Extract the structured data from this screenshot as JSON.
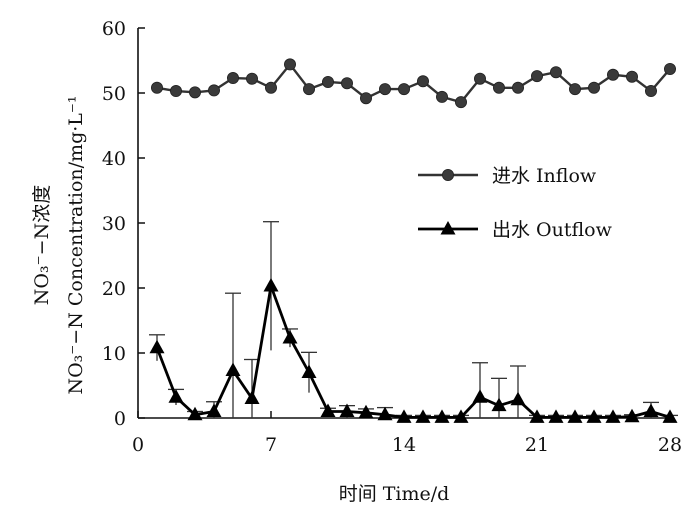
{
  "chart_data": {
    "type": "line",
    "xlabel": "时间 Time/d",
    "ylabel_cn": "NO₃⁻−N浓度",
    "ylabel_en": "NO₃⁻−N Concentration/mg·L⁻¹",
    "xlim": [
      0,
      28
    ],
    "ylim": [
      0,
      60
    ],
    "xticks": [
      0,
      7,
      14,
      21,
      28
    ],
    "yticks": [
      0,
      10,
      20,
      30,
      40,
      50,
      60
    ],
    "legend_position": "center-right",
    "grid": false,
    "series": [
      {
        "name": "进水 Inflow",
        "marker": "circle",
        "x": [
          1,
          2,
          3,
          4,
          5,
          6,
          7,
          8,
          9,
          10,
          11,
          12,
          13,
          14,
          15,
          16,
          17,
          18,
          19,
          20,
          21,
          22,
          23,
          24,
          25,
          26,
          27,
          28
        ],
        "y": [
          50.8,
          50.3,
          50.1,
          50.4,
          52.3,
          52.2,
          50.8,
          54.4,
          50.6,
          51.7,
          51.5,
          49.2,
          50.6,
          50.6,
          51.8,
          49.4,
          48.6,
          52.2,
          50.8,
          50.8,
          52.6,
          53.2,
          50.6,
          50.8,
          52.8,
          52.5,
          50.3,
          53.7
        ]
      },
      {
        "name": "出水 Outflow",
        "marker": "triangle",
        "x": [
          1,
          2,
          3,
          4,
          5,
          6,
          7,
          8,
          9,
          10,
          11,
          12,
          13,
          14,
          15,
          16,
          17,
          18,
          19,
          20,
          21,
          22,
          23,
          24,
          25,
          26,
          27,
          28
        ],
        "y": [
          10.8,
          3.2,
          0.5,
          1.0,
          7.3,
          3.0,
          20.3,
          12.3,
          7.0,
          1.0,
          1.0,
          0.8,
          0.5,
          0.1,
          0.1,
          0.1,
          0.1,
          3.2,
          1.9,
          2.8,
          0.1,
          0.1,
          0.1,
          0.1,
          0.1,
          0.2,
          1.0,
          0.1
        ],
        "error": [
          2.0,
          1.2,
          0.5,
          1.5,
          11.9,
          6.0,
          9.9,
          1.4,
          3.1,
          0.5,
          0.9,
          0.6,
          1.1,
          0.3,
          0.3,
          0.3,
          0.3,
          5.3,
          4.2,
          5.2,
          0.3,
          0.3,
          0.3,
          0.3,
          0.3,
          0.3,
          1.4,
          0.3
        ]
      }
    ]
  }
}
